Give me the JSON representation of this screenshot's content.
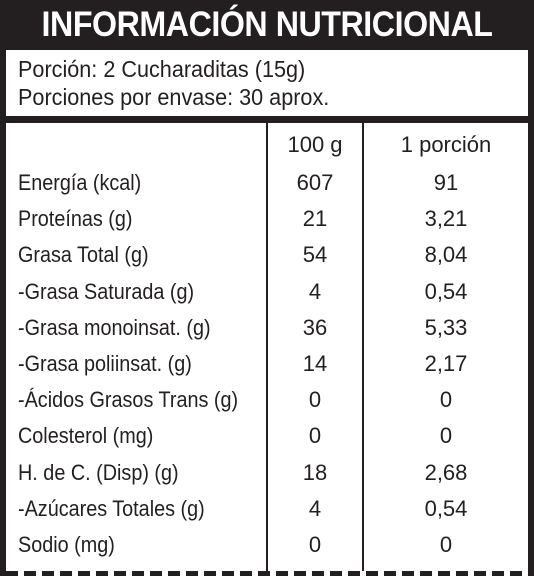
{
  "title": "INFORMACIÓN NUTRICIONAL",
  "serving": {
    "portion": "Porción: 2 Cucharaditas (15g)",
    "portions_per_pack": "Porciones por envase: 30 aprox."
  },
  "table": {
    "headers": [
      "100 g",
      "1 porción"
    ],
    "rows": [
      {
        "name": "Energía (kcal)",
        "per100": "607",
        "perPortion": "91"
      },
      {
        "name": "Proteínas (g)",
        "per100": "21",
        "perPortion": "3,21"
      },
      {
        "name": "Grasa Total (g)",
        "per100": "54",
        "perPortion": "8,04"
      },
      {
        "name": "-Grasa Saturada (g)",
        "per100": "4",
        "perPortion": "0,54"
      },
      {
        "name": "-Grasa monoinsat. (g)",
        "per100": "36",
        "perPortion": "5,33"
      },
      {
        "name": "-Grasa poliinsat. (g)",
        "per100": "14",
        "perPortion": "2,17"
      },
      {
        "name": "-Ácidos Grasos Trans (g)",
        "per100": "0",
        "perPortion": "0"
      },
      {
        "name": "Colesterol (mg)",
        "per100": "0",
        "perPortion": "0"
      },
      {
        "name": "H. de C. (Disp) (g)",
        "per100": "18",
        "perPortion": "2,68"
      },
      {
        "name": "-Azúcares Totales (g)",
        "per100": "4",
        "perPortion": "0,54"
      },
      {
        "name": "Sodio (mg)",
        "per100": "0",
        "perPortion": "0"
      }
    ]
  },
  "colors": {
    "ink": "#231f20",
    "paper": "#ffffff"
  }
}
